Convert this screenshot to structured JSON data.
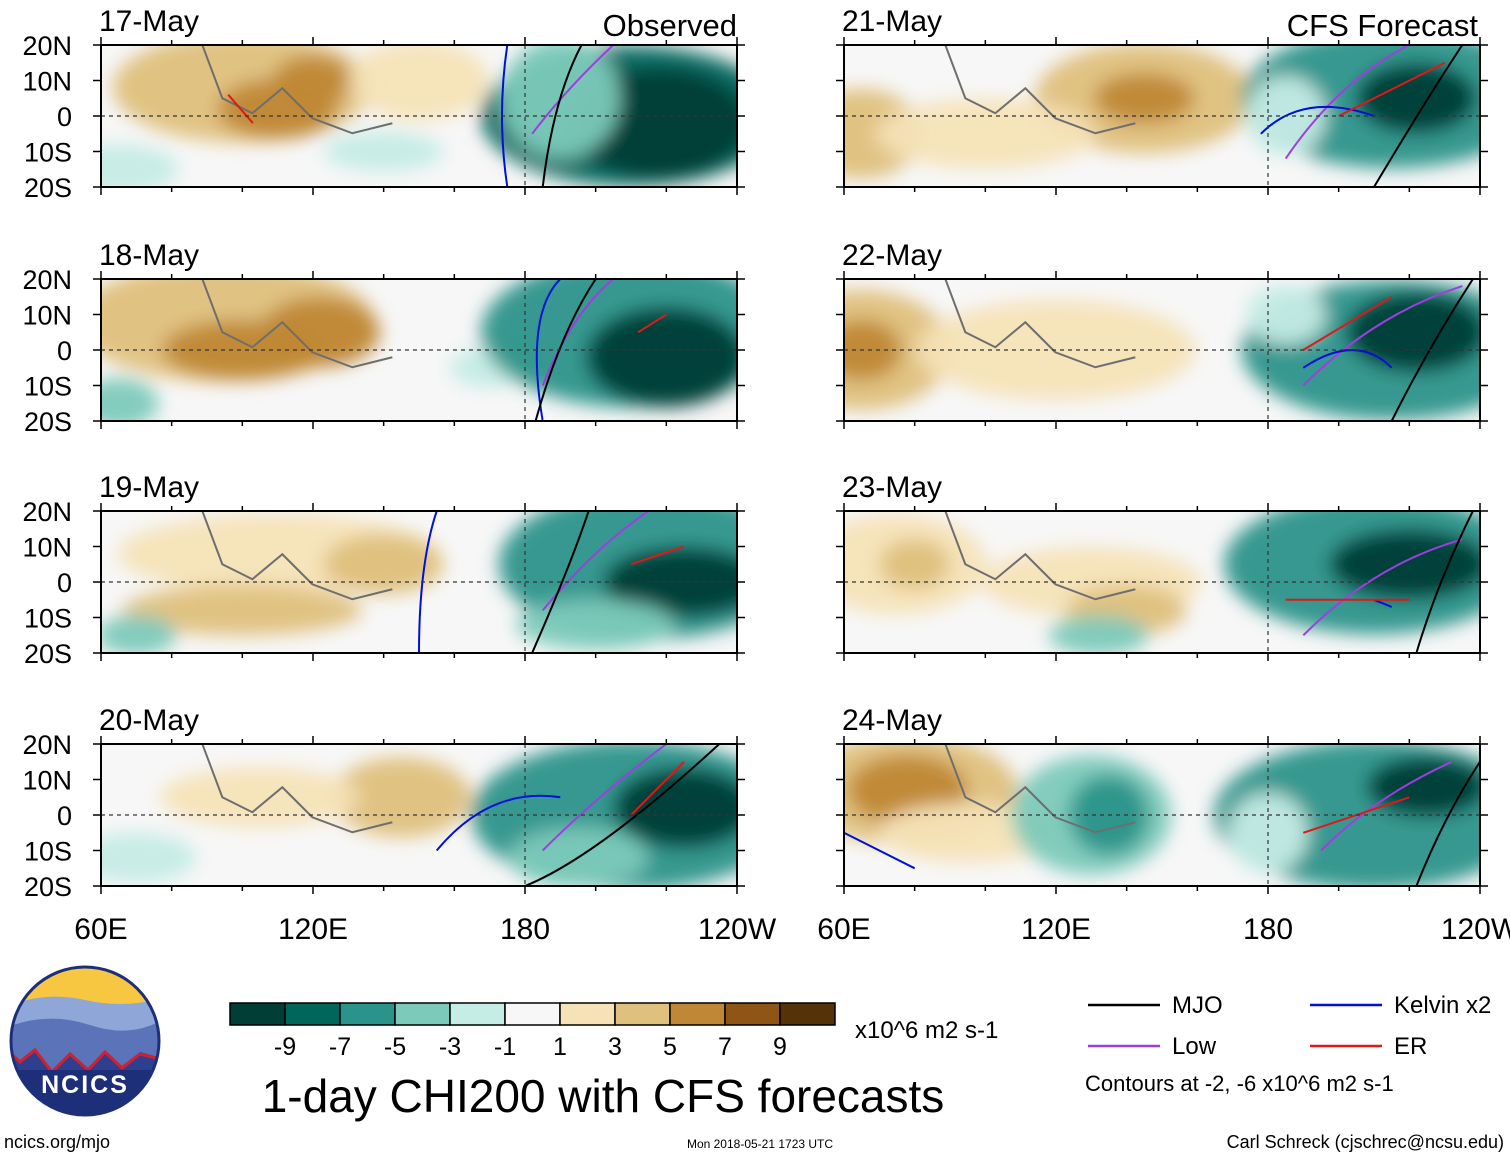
{
  "chart_data": {
    "type": "heatmap",
    "title": "1-day CHI200 with CFS forecasts",
    "units": "x10^6 m2 s-1",
    "observed_label": "Observed",
    "forecast_label": "CFS Forecast",
    "latitude_ticks": [
      "20N",
      "10N",
      "0",
      "10S",
      "20S"
    ],
    "longitude_ticks": [
      "60E",
      "120E",
      "180",
      "120W"
    ],
    "lat_range": [
      -20,
      20
    ],
    "lon_range": [
      60,
      240
    ],
    "panels": [
      {
        "date": "17-May",
        "group": "observed"
      },
      {
        "date": "18-May",
        "group": "observed"
      },
      {
        "date": "19-May",
        "group": "observed"
      },
      {
        "date": "20-May",
        "group": "observed"
      },
      {
        "date": "21-May",
        "group": "forecast"
      },
      {
        "date": "22-May",
        "group": "forecast"
      },
      {
        "date": "23-May",
        "group": "forecast"
      },
      {
        "date": "24-May",
        "group": "forecast"
      }
    ],
    "colorbar": {
      "labels": [
        "-9",
        "-7",
        "-5",
        "-3",
        "-1",
        "1",
        "3",
        "5",
        "7",
        "9"
      ],
      "colors": [
        "#003e36",
        "#00665c",
        "#2a948a",
        "#7ccaba",
        "#c5ece5",
        "#f7f7f7",
        "#f5e3b7",
        "#dfc07c",
        "#c08836",
        "#8f5516",
        "#553208"
      ]
    },
    "legend": [
      {
        "label": "MJO",
        "color": "#000000"
      },
      {
        "label": "Kelvin x2",
        "color": "#0011d6"
      },
      {
        "label": "Low",
        "color": "#9f3ee0"
      },
      {
        "label": "ER",
        "color": "#e01818"
      }
    ],
    "contour_note": "Contours at -2, -6 x10^6 m2 s-1"
  },
  "footer": {
    "left_url": "ncics.org/mjo",
    "timestamp": "Mon 2018-05-21 1723 UTC",
    "credit": "Carl Schreck (cjschrec@ncsu.edu)"
  },
  "logo": {
    "text": "NCICS"
  }
}
